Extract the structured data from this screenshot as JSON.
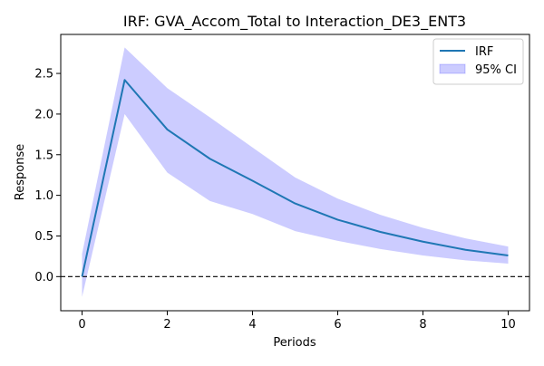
{
  "chart_data": {
    "type": "line",
    "title": "IRF: GVA_Accom_Total to Interaction_DE3_ENT3",
    "xlabel": "Periods",
    "ylabel": "Response",
    "xlim": [
      -0.5,
      10.5
    ],
    "ylim": [
      -0.42,
      2.98
    ],
    "x_ticks": [
      0,
      2,
      4,
      6,
      8,
      10
    ],
    "y_ticks": [
      0.0,
      0.5,
      1.0,
      1.5,
      2.0,
      2.5
    ],
    "x_tick_labels": [
      "0",
      "2",
      "4",
      "6",
      "8",
      "10"
    ],
    "y_tick_labels": [
      "0.0",
      "0.5",
      "1.0",
      "1.5",
      "2.0",
      "2.5"
    ],
    "x": [
      0,
      1,
      2,
      3,
      4,
      5,
      6,
      7,
      8,
      9,
      10
    ],
    "series": [
      {
        "name": "IRF",
        "values": [
          0.0,
          2.42,
          1.81,
          1.45,
          1.18,
          0.9,
          0.7,
          0.55,
          0.43,
          0.33,
          0.26
        ],
        "color": "#1f77b4"
      }
    ],
    "confidence_band": {
      "name": "95% CI",
      "lower": [
        -0.25,
        2.0,
        1.28,
        0.93,
        0.77,
        0.56,
        0.44,
        0.34,
        0.26,
        0.2,
        0.16
      ],
      "upper": [
        0.28,
        2.82,
        2.32,
        1.96,
        1.59,
        1.22,
        0.96,
        0.76,
        0.6,
        0.47,
        0.37
      ],
      "color": "#0000ff",
      "opacity": 0.2
    },
    "reference_line": {
      "y": 0,
      "style": "dashed",
      "color": "#000000"
    },
    "legend": {
      "placement": "top-right",
      "entries": [
        "IRF",
        "95% CI"
      ]
    },
    "grid": false
  }
}
